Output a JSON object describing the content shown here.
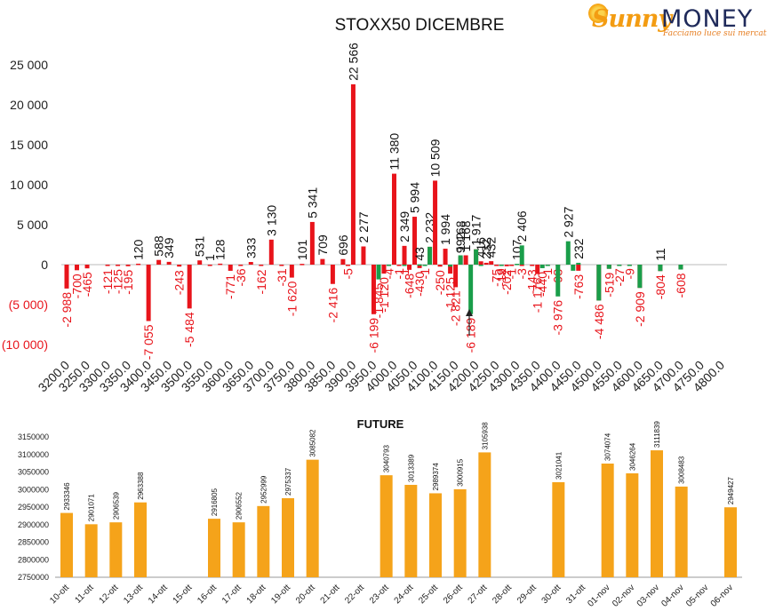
{
  "brand": {
    "name_part1": "Sunny",
    "name_part2": "MONEY",
    "tagline": "Facciamo luce sui mercati"
  },
  "colors": {
    "red": "#e8141b",
    "green": "#1a9e4a",
    "orange": "#f5a31a",
    "text": "#222222"
  },
  "chart_data": [
    {
      "type": "bar",
      "title": "STOXX50 DICEMBRE",
      "ylim": [
        -10000,
        25000
      ],
      "yticks": [
        "25 000",
        "20 000",
        "15 000",
        "10 000",
        "5 000",
        "0",
        "(5 000)",
        "(10 000)"
      ],
      "ytick_values": [
        25000,
        20000,
        15000,
        10000,
        5000,
        0,
        -5000,
        -10000
      ],
      "categories": [
        "3200.0",
        "3250.0",
        "3300.0",
        "3350.0",
        "3400.0",
        "3450.0",
        "3500.0",
        "3550.0",
        "3600.0",
        "3650.0",
        "3700.0",
        "3750.0",
        "3800.0",
        "3850.0",
        "3900.0",
        "3950.0",
        "4000.0",
        "4050.0",
        "4100.0",
        "4150.0",
        "4200.0",
        "4250.0",
        "4300.0",
        "4350.0",
        "4400.0",
        "4450.0",
        "4500.0",
        "4550.0",
        "4600.0",
        "4650.0",
        "4700.0",
        "4750.0",
        "4800.0"
      ],
      "series": [
        {
          "color": "red",
          "values": [
            {
              "x": 3200,
              "y": -2988,
              "label": "-2 988"
            },
            {
              "x": 3225,
              "y": -700,
              "label": "-700"
            },
            {
              "x": 3250,
              "y": -465,
              "label": "-465"
            },
            {
              "x": 3300,
              "y": -121,
              "label": "-121"
            },
            {
              "x": 3325,
              "y": -125,
              "label": "-125"
            },
            {
              "x": 3350,
              "y": -195,
              "label": "-195"
            },
            {
              "x": 3375,
              "y": 120,
              "label": "120"
            },
            {
              "x": 3400,
              "y": -7055,
              "label": "-7 055"
            },
            {
              "x": 3425,
              "y": 588,
              "label": "588"
            },
            {
              "x": 3450,
              "y": 349,
              "label": "349"
            },
            {
              "x": 3475,
              "y": -243,
              "label": "-243"
            },
            {
              "x": 3500,
              "y": -5484,
              "label": "-5 484"
            },
            {
              "x": 3525,
              "y": 531,
              "label": "531"
            },
            {
              "x": 3550,
              "y": 1,
              "label": "1"
            },
            {
              "x": 3575,
              "y": 128,
              "label": "128"
            },
            {
              "x": 3600,
              "y": -771,
              "label": "-771"
            },
            {
              "x": 3625,
              "y": -36,
              "label": "-36"
            },
            {
              "x": 3650,
              "y": 333,
              "label": "333"
            },
            {
              "x": 3675,
              "y": -162,
              "label": "-162"
            },
            {
              "x": 3700,
              "y": 3130,
              "label": "3 130"
            },
            {
              "x": 3725,
              "y": -31,
              "label": "-31"
            },
            {
              "x": 3750,
              "y": -1620,
              "label": "-1 620"
            },
            {
              "x": 3775,
              "y": 101,
              "label": "101"
            },
            {
              "x": 3800,
              "y": 5341,
              "label": "5 341"
            },
            {
              "x": 3825,
              "y": 709,
              "label": "709"
            },
            {
              "x": 3850,
              "y": -2416,
              "label": "-2 416"
            },
            {
              "x": 3875,
              "y": 696,
              "label": "696"
            },
            {
              "x": 3887,
              "y": -5,
              "label": "-5"
            },
            {
              "x": 3900,
              "y": 22566,
              "label": "22 566"
            },
            {
              "x": 3925,
              "y": 2277,
              "label": "2 277"
            },
            {
              "x": 3950,
              "y": -6199,
              "label": "-6 199"
            },
            {
              "x": 3975,
              "y": -1120,
              "label": "-1 120"
            },
            {
              "x": 4000,
              "y": 11380,
              "label": "11 380"
            },
            {
              "x": 4012,
              "y": -1,
              "label": "-1"
            },
            {
              "x": 4025,
              "y": 2349,
              "label": "2 349"
            },
            {
              "x": 4037,
              "y": -648,
              "label": "-648"
            },
            {
              "x": 4050,
              "y": 5994,
              "label": "5 994"
            },
            {
              "x": 4062,
              "y": -430,
              "label": "-430"
            },
            {
              "x": 4087,
              "y": 2232,
              "label": "2 232"
            },
            {
              "x": 4100,
              "y": 10509,
              "label": "10 509"
            },
            {
              "x": 4112,
              "y": -250,
              "label": "-250"
            },
            {
              "x": 4125,
              "y": 1994,
              "label": "1 994"
            },
            {
              "x": 4137,
              "y": -1125,
              "label": "-1 125"
            },
            {
              "x": 4150,
              "y": -2821,
              "label": "-2 821"
            },
            {
              "x": 4162,
              "y": 992,
              "label": "992"
            },
            {
              "x": 4175,
              "y": 1168,
              "label": "1 168"
            },
            {
              "x": 4200,
              "y": 1917,
              "label": "1 917"
            },
            {
              "x": 4212,
              "y": 416,
              "label": "416"
            },
            {
              "x": 4225,
              "y": 232,
              "label": "232"
            },
            {
              "x": 4237,
              "y": 432,
              "label": "432"
            },
            {
              "x": 4250,
              "y": -75,
              "label": "-75"
            },
            {
              "x": 4262,
              "y": -19,
              "label": "-19"
            },
            {
              "x": 4275,
              "y": -202,
              "label": "-202"
            },
            {
              "x": 4287,
              "y": -1,
              "label": "-1"
            },
            {
              "x": 4312,
              "y": -3,
              "label": "-3"
            },
            {
              "x": 4337,
              "y": -143,
              "label": "-143"
            },
            {
              "x": 4350,
              "y": -1176,
              "label": "-1 176"
            },
            {
              "x": 4375,
              "y": -1,
              "label": "-1"
            },
            {
              "x": 4400,
              "y": -98,
              "label": "-98"
            },
            {
              "x": 4450,
              "y": -763,
              "label": "-763"
            },
            {
              "x": 4500,
              "y": -4486,
              "label": "-4 486"
            },
            {
              "x": 4525,
              "y": -519,
              "label": "-519"
            },
            {
              "x": 4550,
              "y": -27,
              "label": "-27"
            },
            {
              "x": 4575,
              "y": -9,
              "label": "-9"
            },
            {
              "x": 4600,
              "y": -2909,
              "label": "-2 909"
            },
            {
              "x": 4650,
              "y": -804,
              "label": "-804"
            },
            {
              "x": 4700,
              "y": -608,
              "label": "-608"
            }
          ]
        },
        {
          "color": "green",
          "values": [
            {
              "x": 3962,
              "y": -1845,
              "label": "-1 845"
            },
            {
              "x": 3987,
              "y": -4,
              "label": "-4"
            },
            {
              "x": 4025,
              "y": -1,
              "label": "-1"
            },
            {
              "x": 4062,
              "y": 43,
              "label": "43"
            },
            {
              "x": 4075,
              "y": -1,
              "label": "-1"
            },
            {
              "x": 4087,
              "y": 2232,
              "label": ""
            },
            {
              "x": 4137,
              "y": -250,
              "label": ""
            },
            {
              "x": 4162,
              "y": 1168,
              "label": "1 168"
            },
            {
              "x": 4187,
              "y": -6189,
              "label": "-6 189"
            },
            {
              "x": 4200,
              "y": 1917,
              "label": ""
            },
            {
              "x": 4212,
              "y": -132,
              "label": ""
            },
            {
              "x": 4262,
              "y": -2,
              "label": "-2"
            },
            {
              "x": 4300,
              "y": 107,
              "label": "107"
            },
            {
              "x": 4312,
              "y": 2406,
              "label": "2 406"
            },
            {
              "x": 4362,
              "y": -440,
              "label": "-440"
            },
            {
              "x": 4375,
              "y": -11,
              "label": ""
            },
            {
              "x": 4400,
              "y": -3976,
              "label": "-3 976"
            },
            {
              "x": 4425,
              "y": 2927,
              "label": "2 927"
            },
            {
              "x": 4437,
              "y": -763,
              "label": ""
            },
            {
              "x": 4450,
              "y": 232,
              "label": "232"
            },
            {
              "x": 4500,
              "y": -4486,
              "label": ""
            },
            {
              "x": 4525,
              "y": -519,
              "label": ""
            },
            {
              "x": 4550,
              "y": -27,
              "label": ""
            },
            {
              "x": 4575,
              "y": -9,
              "label": ""
            },
            {
              "x": 4600,
              "y": -2909,
              "label": ""
            },
            {
              "x": 4650,
              "y": 11,
              "label": "11"
            },
            {
              "x": 4650,
              "y": -804,
              "label": ""
            },
            {
              "x": 4700,
              "y": -608,
              "label": ""
            }
          ]
        }
      ]
    },
    {
      "type": "bar",
      "title": "FUTURE",
      "ylim": [
        2750000,
        3150000
      ],
      "yticks": [
        "3150000",
        "3100000",
        "3050000",
        "3000000",
        "2950000",
        "2900000",
        "2850000",
        "2800000",
        "2750000"
      ],
      "ytick_values": [
        3150000,
        3100000,
        3050000,
        3000000,
        2950000,
        2900000,
        2850000,
        2800000,
        2750000
      ],
      "categories": [
        "10-ott",
        "11-ott",
        "12-ott",
        "13-ott",
        "14-ott",
        "15-ott",
        "16-ott",
        "17-ott",
        "18-ott",
        "19-ott",
        "20-ott",
        "21-ott",
        "22-ott",
        "23-ott",
        "24-ott",
        "25-ott",
        "26-ott",
        "27-ott",
        "28-ott",
        "29-ott",
        "30-ott",
        "31-ott",
        "01-nov",
        "02-nov",
        "03-nov",
        "04-nov",
        "05-nov",
        "06-nov"
      ],
      "values": [
        2933346,
        2901071,
        2906539,
        2963388,
        null,
        null,
        2916805,
        2906552,
        2952999,
        2975337,
        3085082,
        null,
        null,
        3040793,
        3013389,
        2989374,
        3000915,
        3105938,
        null,
        null,
        3021041,
        null,
        3074074,
        3046264,
        3111839,
        3008483,
        null,
        2949427
      ],
      "labels": [
        "2933346",
        "2901071",
        "2906539",
        "2963388",
        "",
        "",
        "2916805",
        "2906552",
        "2952999",
        "2975337",
        "3085082",
        "",
        "",
        "3040793",
        "3013389",
        "2989374",
        "3000915",
        "3105938",
        "",
        "",
        "3021041",
        "",
        "3074074",
        "3046264",
        "3111839",
        "3008483",
        "",
        "2949427"
      ]
    }
  ]
}
